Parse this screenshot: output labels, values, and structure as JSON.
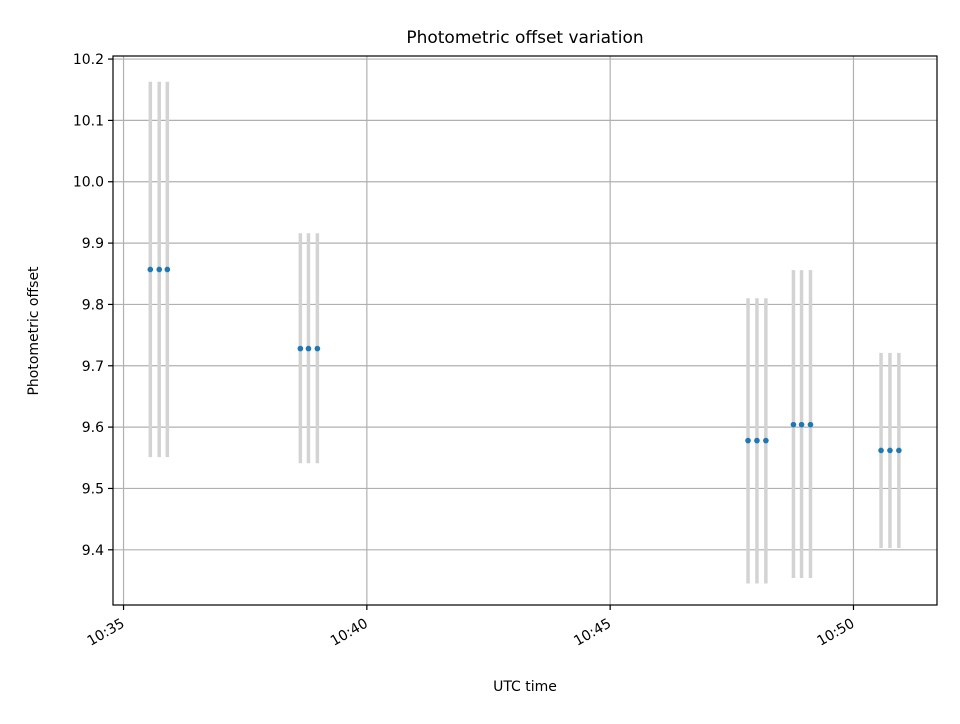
{
  "chart_data": {
    "type": "scatter",
    "title": "Photometric offset variation",
    "xlabel": "UTC time",
    "ylabel": "Photometric offset",
    "x_ticks": [
      "10:35",
      "10:40",
      "10:45",
      "10:50"
    ],
    "x_tick_minutes": [
      35,
      40,
      45,
      50
    ],
    "y_ticks": [
      "9.4",
      "9.5",
      "9.6",
      "9.7",
      "9.8",
      "9.9",
      "10.0",
      "10.1",
      "10.2"
    ],
    "xlim": [
      "10:34:47",
      "10:51:43"
    ],
    "ylim": [
      9.31,
      10.205
    ],
    "grid": true,
    "marker_color": "#1f77b4",
    "errorbar_color": "#d3d3d3",
    "points": [
      {
        "time": "10:35:33",
        "value": 9.857,
        "err_low": 9.551,
        "err_high": 10.163
      },
      {
        "time": "10:35:44",
        "value": 9.857,
        "err_low": 9.551,
        "err_high": 10.163
      },
      {
        "time": "10:35:54",
        "value": 9.857,
        "err_low": 9.551,
        "err_high": 10.163
      },
      {
        "time": "10:38:38",
        "value": 9.728,
        "err_low": 9.541,
        "err_high": 9.916
      },
      {
        "time": "10:38:48",
        "value": 9.728,
        "err_low": 9.541,
        "err_high": 9.916
      },
      {
        "time": "10:38:59",
        "value": 9.728,
        "err_low": 9.541,
        "err_high": 9.916
      },
      {
        "time": "10:47:50",
        "value": 9.578,
        "err_low": 9.345,
        "err_high": 9.81
      },
      {
        "time": "10:48:01",
        "value": 9.578,
        "err_low": 9.345,
        "err_high": 9.81
      },
      {
        "time": "10:48:12",
        "value": 9.578,
        "err_low": 9.345,
        "err_high": 9.81
      },
      {
        "time": "10:48:46",
        "value": 9.604,
        "err_low": 9.354,
        "err_high": 9.856
      },
      {
        "time": "10:48:56",
        "value": 9.604,
        "err_low": 9.354,
        "err_high": 9.856
      },
      {
        "time": "10:49:07",
        "value": 9.604,
        "err_low": 9.354,
        "err_high": 9.856
      },
      {
        "time": "10:50:34",
        "value": 9.562,
        "err_low": 9.403,
        "err_high": 9.721
      },
      {
        "time": "10:50:45",
        "value": 9.562,
        "err_low": 9.403,
        "err_high": 9.721
      },
      {
        "time": "10:50:56",
        "value": 9.562,
        "err_low": 9.403,
        "err_high": 9.721
      }
    ]
  }
}
